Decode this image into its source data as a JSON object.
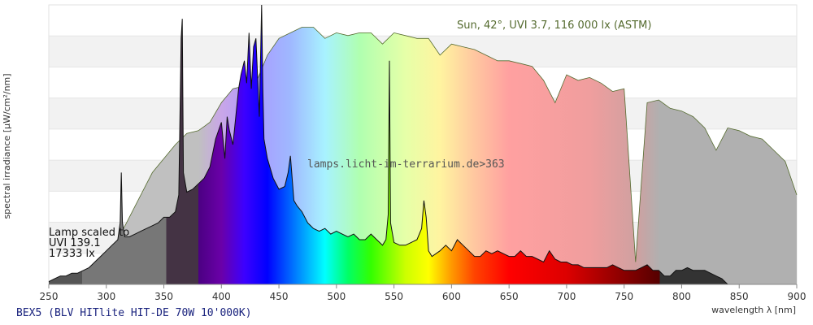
{
  "chart_data": {
    "type": "area",
    "xlabel": "wavelength λ [nm]",
    "ylabel": "spectral irradiance [µW/cm²/nm]",
    "xlim": [
      250,
      900
    ],
    "ylim": [
      0,
      100
    ],
    "x_ticks": [
      250,
      300,
      350,
      400,
      450,
      500,
      550,
      600,
      650,
      700,
      750,
      800,
      850,
      900
    ],
    "grid": "horizontal bands",
    "sun_label": "Sun, 42°, UVI 3.7, 116 000 lx (ASTM)",
    "lamp_label": [
      "Lamp scaled to",
      "UVI 139.1",
      "17333 lx"
    ],
    "watermark": "lamps.licht-im-terrarium.de>363",
    "source_label": "BEX5 (BLV HITlite HIT-DE 70W 10'000K)",
    "series": [
      {
        "name": "Sun, 42°, UVI 3.7, 116 000 lx (ASTM)",
        "x": [
          290,
          300,
          310,
          320,
          330,
          340,
          350,
          360,
          370,
          380,
          390,
          400,
          410,
          420,
          430,
          440,
          450,
          460,
          470,
          480,
          490,
          500,
          510,
          520,
          530,
          540,
          550,
          560,
          570,
          580,
          590,
          600,
          610,
          620,
          630,
          640,
          650,
          660,
          670,
          680,
          690,
          700,
          710,
          720,
          730,
          740,
          750,
          760,
          770,
          780,
          790,
          800,
          810,
          820,
          830,
          840,
          850,
          860,
          870,
          880,
          890,
          900
        ],
        "y": [
          0,
          8,
          16,
          24,
          32,
          40,
          45,
          50,
          54,
          55,
          58,
          65,
          70,
          71,
          72,
          82,
          88,
          90,
          92,
          92,
          88,
          90,
          89,
          90,
          90,
          86,
          90,
          89,
          88,
          88,
          82,
          86,
          85,
          84,
          82,
          80,
          80,
          79,
          78,
          73,
          65,
          75,
          73,
          74,
          72,
          69,
          70,
          8,
          65,
          66,
          63,
          62,
          60,
          56,
          48,
          56,
          55,
          53,
          52,
          48,
          44,
          32
        ]
      },
      {
        "name": "Lamp scaled to UVI 139.1, 17333 lx",
        "x": [
          250,
          255,
          260,
          265,
          270,
          275,
          280,
          285,
          290,
          295,
          300,
          305,
          310,
          312,
          313,
          314,
          316,
          320,
          325,
          330,
          335,
          340,
          345,
          350,
          355,
          360,
          363,
          365,
          366,
          367,
          370,
          375,
          380,
          385,
          390,
          395,
          400,
          403,
          405,
          407,
          410,
          413,
          415,
          417,
          420,
          422,
          424,
          426,
          428,
          430,
          433,
          435,
          436,
          437,
          440,
          445,
          450,
          455,
          458,
          460,
          463,
          466,
          470,
          475,
          480,
          485,
          490,
          495,
          500,
          505,
          510,
          515,
          520,
          525,
          530,
          535,
          540,
          543,
          545,
          546,
          547,
          550,
          555,
          560,
          565,
          570,
          574,
          576,
          578,
          580,
          583,
          590,
          595,
          600,
          605,
          610,
          615,
          620,
          625,
          630,
          635,
          640,
          645,
          650,
          655,
          660,
          665,
          670,
          675,
          680,
          685,
          690,
          695,
          700,
          705,
          710,
          715,
          720,
          725,
          730,
          735,
          740,
          745,
          750,
          755,
          760,
          765,
          770,
          775,
          780,
          785,
          790,
          795,
          800,
          805,
          810,
          815,
          820,
          825,
          830,
          835,
          840,
          845,
          850,
          860,
          870,
          880,
          890,
          900
        ],
        "y": [
          1,
          2,
          3,
          3,
          4,
          4,
          5,
          6,
          8,
          10,
          12,
          14,
          16,
          22,
          40,
          22,
          17,
          17,
          18,
          19,
          20,
          21,
          22,
          24,
          24,
          26,
          32,
          88,
          95,
          40,
          33,
          34,
          36,
          38,
          42,
          52,
          58,
          45,
          60,
          55,
          50,
          62,
          70,
          75,
          80,
          72,
          90,
          70,
          85,
          88,
          60,
          100,
          70,
          52,
          45,
          38,
          34,
          35,
          40,
          46,
          30,
          28,
          26,
          22,
          20,
          19,
          20,
          18,
          19,
          18,
          17,
          18,
          16,
          16,
          18,
          16,
          14,
          16,
          25,
          80,
          22,
          15,
          14,
          14,
          15,
          16,
          20,
          30,
          24,
          12,
          10,
          12,
          14,
          12,
          16,
          14,
          12,
          10,
          10,
          12,
          11,
          12,
          11,
          10,
          10,
          12,
          10,
          10,
          9,
          8,
          12,
          9,
          8,
          8,
          7,
          7,
          6,
          6,
          6,
          6,
          6,
          7,
          6,
          5,
          5,
          5,
          6,
          7,
          5,
          5,
          3,
          3,
          5,
          5,
          6,
          5,
          5,
          5,
          4,
          3,
          2,
          0,
          0,
          0,
          0,
          0,
          0,
          0,
          0
        ]
      }
    ]
  }
}
